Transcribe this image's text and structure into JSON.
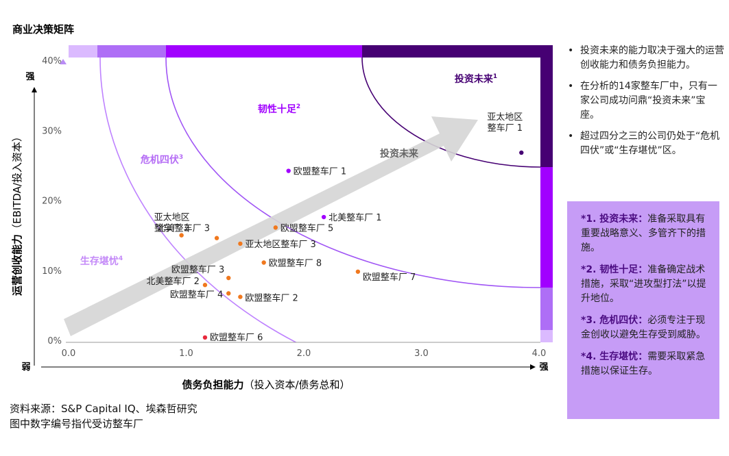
{
  "title": "商业决策矩阵",
  "source_lines": [
    "资料来源：S&P Capital IQ、埃森哲研究",
    "图中数字编号指代受访整车厂"
  ],
  "bullets": [
    "投资未来的能力取决于强大的运营创收能力和债务负担能力。",
    "在分析的14家整车厂中，只有一家公司成功问鼎“投资未来”宝座。",
    "超过四分之三的公司仍处于“危机四伏”或“生存堪忧”区。"
  ],
  "definitions": [
    {
      "head": "*1. 投资未来：",
      "text": "准备采取具有重要战略意义、多管齐下的措施。"
    },
    {
      "head": "*2. 韧性十足：",
      "text": "准备确定战术措施，采取“进攻型打法”以提升地位。"
    },
    {
      "head": "*3. 危机四伏：",
      "text": "必须专注于现金创收以避免生存受到威胁。"
    },
    {
      "head": "*4. 生存堪忧：",
      "text": "需要采取紧急措施以保证生存。"
    }
  ],
  "chart_data": {
    "type": "scatter",
    "xlabel": "债务负担能力",
    "xlabel_suffix": "（投入资本/债务总和）",
    "ylabel": "运营创收能力",
    "ylabel_suffix": "（EBITDA/投入资本）",
    "xlim": [
      0,
      4
    ],
    "ylim": [
      0,
      40
    ],
    "x_ticks": [
      "0.0",
      "1.0",
      "2.0",
      "3.0",
      "4.0"
    ],
    "y_ticks": [
      "0%",
      "10%",
      "20%",
      "30%",
      "40%"
    ],
    "y_ticks_values": [
      0,
      10,
      20,
      30,
      40
    ],
    "x_ticks_values": [
      0,
      1,
      2,
      3,
      4
    ],
    "axis_weak": "弱",
    "y_axis_strong": "强",
    "x_axis_strong": "强",
    "arrow_label": "投资未来",
    "zones": [
      {
        "label": "投资未来",
        "sup": "1",
        "color": "#460073"
      },
      {
        "label": "韧性十足",
        "sup": "2",
        "color": "#a100ff"
      },
      {
        "label": "危机四伏",
        "sup": "3",
        "color": "#a055f5"
      },
      {
        "label": "生存堪忧",
        "sup": "4",
        "color": "#be82ff"
      }
    ],
    "points": [
      {
        "label": "亚太地区\n整车厂 1",
        "x": 3.85,
        "y": 26.8,
        "color": "#460073"
      },
      {
        "label": "欧盟整车厂 1",
        "x": 1.87,
        "y": 24.2,
        "color": "#a100ff"
      },
      {
        "label": "北美整车厂 1",
        "x": 2.17,
        "y": 17.6,
        "color": "#a100ff"
      },
      {
        "label": "亚太地区\n整车厂 2",
        "x": 0.96,
        "y": 15.0,
        "color": "#f0781e"
      },
      {
        "label": "北美整车厂 3",
        "x": 1.26,
        "y": 14.6,
        "color": "#f0781e"
      },
      {
        "label": "欧盟整车厂 5",
        "x": 1.76,
        "y": 16.1,
        "color": "#f0781e"
      },
      {
        "label": "亚太地区整车厂 3",
        "x": 1.46,
        "y": 13.8,
        "color": "#f0781e"
      },
      {
        "label": "欧盟整车厂 8",
        "x": 1.66,
        "y": 11.1,
        "color": "#f0781e"
      },
      {
        "label": "欧盟整车厂 3",
        "x": 1.36,
        "y": 8.9,
        "color": "#f0781e"
      },
      {
        "label": "欧盟整车厂 7",
        "x": 2.46,
        "y": 9.8,
        "color": "#f0781e"
      },
      {
        "label": "北美整车厂 2",
        "x": 1.16,
        "y": 7.9,
        "color": "#f0781e"
      },
      {
        "label": "欧盟整车厂 4",
        "x": 1.36,
        "y": 6.7,
        "color": "#f0781e"
      },
      {
        "label": "欧盟整车厂 2",
        "x": 1.46,
        "y": 6.2,
        "color": "#f0781e"
      },
      {
        "label": "欧盟整车厂 6",
        "x": 1.16,
        "y": 0.4,
        "color": "#e8293c"
      }
    ]
  }
}
